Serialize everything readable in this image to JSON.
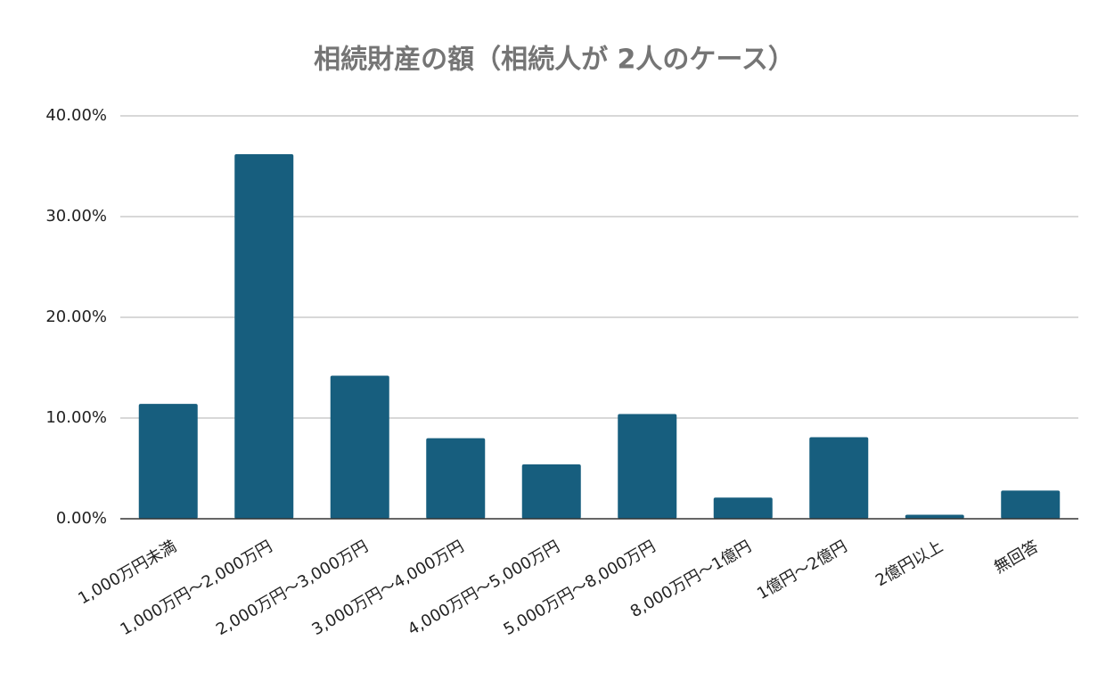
{
  "chart_data": {
    "type": "bar",
    "title": "相続財産の額（相続人が 2人のケース）",
    "categories": [
      "1,000万円未満",
      "1,000万円～2,000万円",
      "2,000万円～3,000万円",
      "3,000万円～4,000万円",
      "4,000万円～5,000万円",
      "5,000万円～8,000万円",
      "8,000万円～1億円",
      "1億円～2億円",
      "2億円以上",
      "無回答"
    ],
    "values": [
      11.4,
      36.2,
      14.2,
      8.0,
      5.4,
      10.4,
      2.1,
      8.1,
      0.4,
      2.8
    ],
    "color": "#175e7e",
    "ylim": [
      0,
      40
    ],
    "yticks": [
      {
        "value": 0,
        "label": "0.00%"
      },
      {
        "value": 10,
        "label": "10.00%"
      },
      {
        "value": 20,
        "label": "20.00%"
      },
      {
        "value": 30,
        "label": "30.00%"
      },
      {
        "value": 40,
        "label": "40.00%"
      }
    ],
    "grid": true
  }
}
